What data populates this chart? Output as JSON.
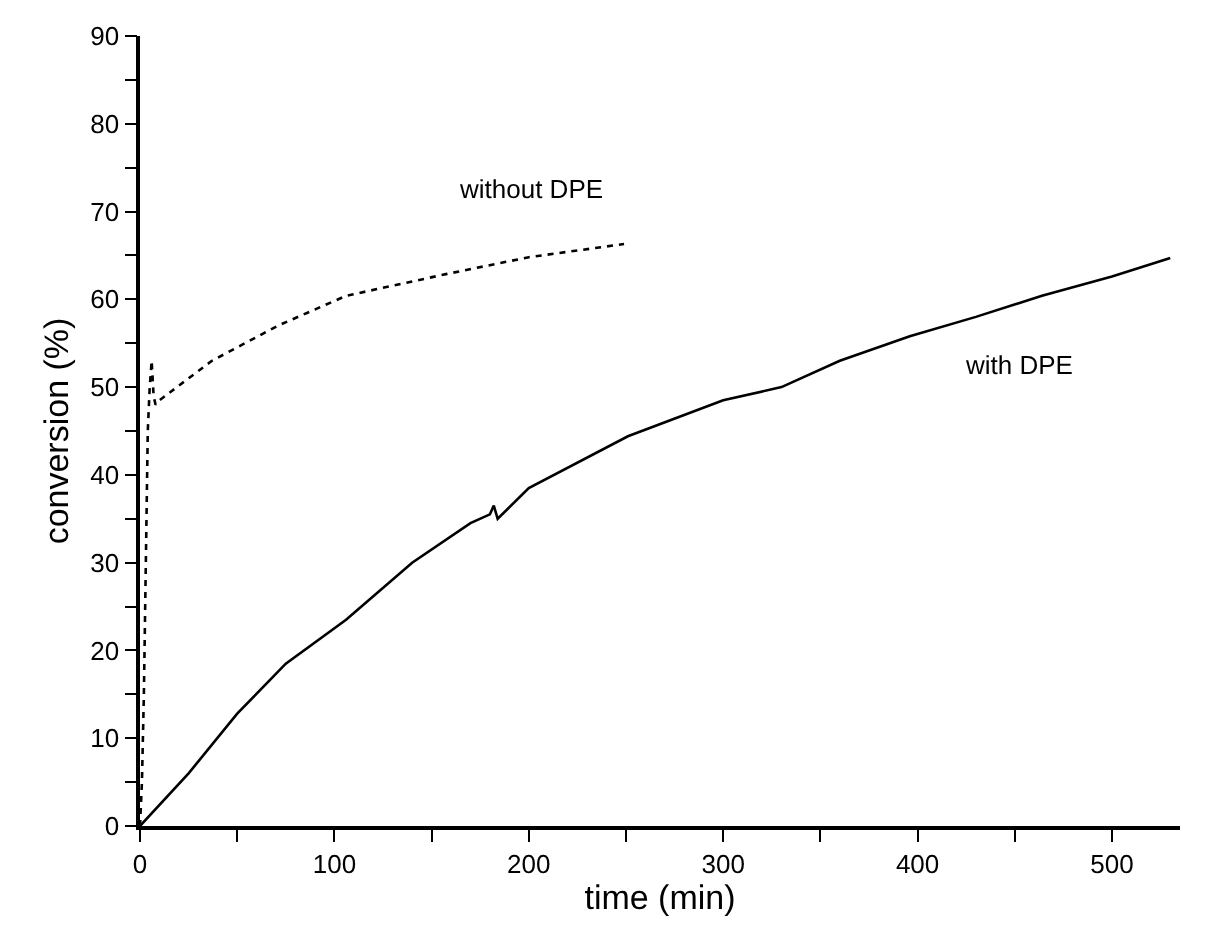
{
  "chart_data": {
    "type": "line",
    "xlabel": "time (min)",
    "ylabel": "conversion (%)",
    "xlim": [
      0,
      535
    ],
    "ylim": [
      0,
      90
    ],
    "xticks": [
      0,
      {
        "value": 50,
        "label": null
      },
      100,
      {
        "value": 150,
        "label": null
      },
      200,
      {
        "value": 250,
        "label": null
      },
      300,
      {
        "value": 350,
        "label": null
      },
      400,
      {
        "value": 450,
        "label": null
      },
      500
    ],
    "yticks": [
      0,
      {
        "value": 5,
        "label": null
      },
      10,
      {
        "value": 15,
        "label": null
      },
      20,
      {
        "value": 25,
        "label": null
      },
      30,
      {
        "value": 35,
        "label": null
      },
      40,
      {
        "value": 45,
        "label": null
      },
      50,
      {
        "value": 55,
        "label": null
      },
      60,
      {
        "value": 65,
        "label": null
      },
      70,
      {
        "value": 75,
        "label": null
      },
      80,
      {
        "value": 85,
        "label": null
      },
      90
    ],
    "grid": false,
    "legend": false,
    "marker": "none",
    "series": [
      {
        "name": "without DPE",
        "color": "#000000",
        "line_style": "dotted",
        "x": [
          0,
          1,
          2,
          3,
          4,
          5,
          6,
          7,
          8,
          10,
          16,
          37,
          71,
          106,
          158,
          200,
          249
        ],
        "values": [
          0,
          5,
          15,
          30,
          45,
          50,
          53,
          49,
          48,
          48.5,
          49.5,
          53,
          57,
          60.4,
          62.9,
          64.8,
          66.3
        ]
      },
      {
        "name": "with DPE",
        "color": "#000000",
        "line_style": "solid",
        "x": [
          0,
          25,
          50,
          75,
          106,
          140,
          170,
          180,
          182,
          184,
          200,
          251,
          300,
          330,
          360,
          396,
          430,
          464,
          500,
          530
        ],
        "values": [
          0,
          6,
          12.8,
          18.5,
          23.5,
          30,
          34.5,
          35.5,
          36.5,
          35,
          38.5,
          44.4,
          48.5,
          50,
          53,
          55.8,
          58,
          60.4,
          62.6,
          64.7
        ]
      }
    ]
  }
}
